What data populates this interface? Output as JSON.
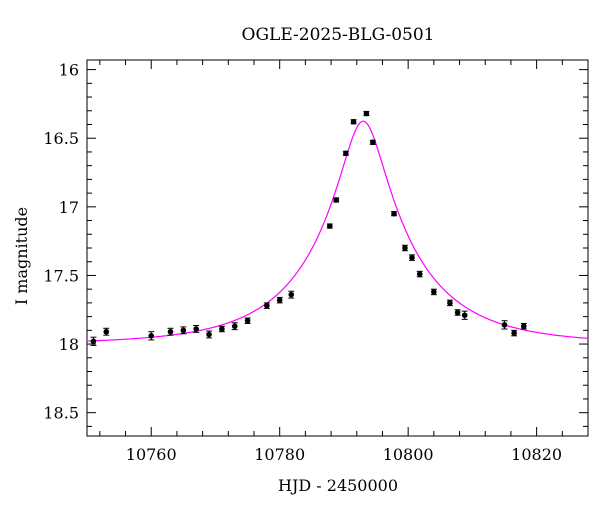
{
  "chart_data": {
    "type": "scatter",
    "title": "OGLE-2025-BLG-0501",
    "xlabel": "HJD - 2450000",
    "ylabel": "I magnitude",
    "xlim": [
      10750,
      10828
    ],
    "ylim": [
      18.67,
      15.93
    ],
    "y_inverted": true,
    "x_ticks": [
      10760,
      10780,
      10800,
      10820
    ],
    "x_tick_labels": [
      "10760",
      "10780",
      "10800",
      "10820"
    ],
    "y_ticks": [
      16,
      16.5,
      17,
      17.5,
      18,
      18.5
    ],
    "y_tick_labels": [
      "16",
      "16.5",
      "17",
      "17.5",
      "18",
      "18.5"
    ],
    "grid": false,
    "model": {
      "name": "",
      "color": "#ff00ff",
      "t0": 10793.0,
      "u0": 0.2,
      "tE": 16.0,
      "baseline_mag": 18.0,
      "blend_fraction": 0.85
    },
    "series": [
      {
        "name": "",
        "color": "#000000",
        "points": [
          {
            "x": 10751.0,
            "y": 17.98,
            "err": 0.03
          },
          {
            "x": 10753.0,
            "y": 17.91,
            "err": 0.025
          },
          {
            "x": 10760.0,
            "y": 17.94,
            "err": 0.03
          },
          {
            "x": 10763.0,
            "y": 17.91,
            "err": 0.025
          },
          {
            "x": 10765.0,
            "y": 17.9,
            "err": 0.025
          },
          {
            "x": 10767.0,
            "y": 17.89,
            "err": 0.025
          },
          {
            "x": 10769.0,
            "y": 17.93,
            "err": 0.025
          },
          {
            "x": 10771.0,
            "y": 17.89,
            "err": 0.02
          },
          {
            "x": 10773.0,
            "y": 17.87,
            "err": 0.025
          },
          {
            "x": 10775.0,
            "y": 17.83,
            "err": 0.02
          },
          {
            "x": 10778.0,
            "y": 17.72,
            "err": 0.02
          },
          {
            "x": 10780.0,
            "y": 17.68,
            "err": 0.02
          },
          {
            "x": 10781.8,
            "y": 17.64,
            "err": 0.025
          },
          {
            "x": 10787.8,
            "y": 17.14,
            "err": 0.015
          },
          {
            "x": 10788.8,
            "y": 16.95,
            "err": 0.015
          },
          {
            "x": 10790.3,
            "y": 16.61,
            "err": 0.015
          },
          {
            "x": 10791.5,
            "y": 16.38,
            "err": 0.015
          },
          {
            "x": 10793.5,
            "y": 16.32,
            "err": 0.015
          },
          {
            "x": 10794.5,
            "y": 16.53,
            "err": 0.015
          },
          {
            "x": 10797.8,
            "y": 17.05,
            "err": 0.015
          },
          {
            "x": 10799.5,
            "y": 17.3,
            "err": 0.02
          },
          {
            "x": 10800.6,
            "y": 17.37,
            "err": 0.02
          },
          {
            "x": 10801.8,
            "y": 17.49,
            "err": 0.02
          },
          {
            "x": 10804.0,
            "y": 17.62,
            "err": 0.02
          },
          {
            "x": 10806.5,
            "y": 17.7,
            "err": 0.02
          },
          {
            "x": 10807.7,
            "y": 17.77,
            "err": 0.02
          },
          {
            "x": 10808.8,
            "y": 17.79,
            "err": 0.03
          },
          {
            "x": 10815.0,
            "y": 17.86,
            "err": 0.03
          },
          {
            "x": 10816.5,
            "y": 17.92,
            "err": 0.02
          },
          {
            "x": 10818.0,
            "y": 17.87,
            "err": 0.02
          }
        ]
      }
    ]
  }
}
